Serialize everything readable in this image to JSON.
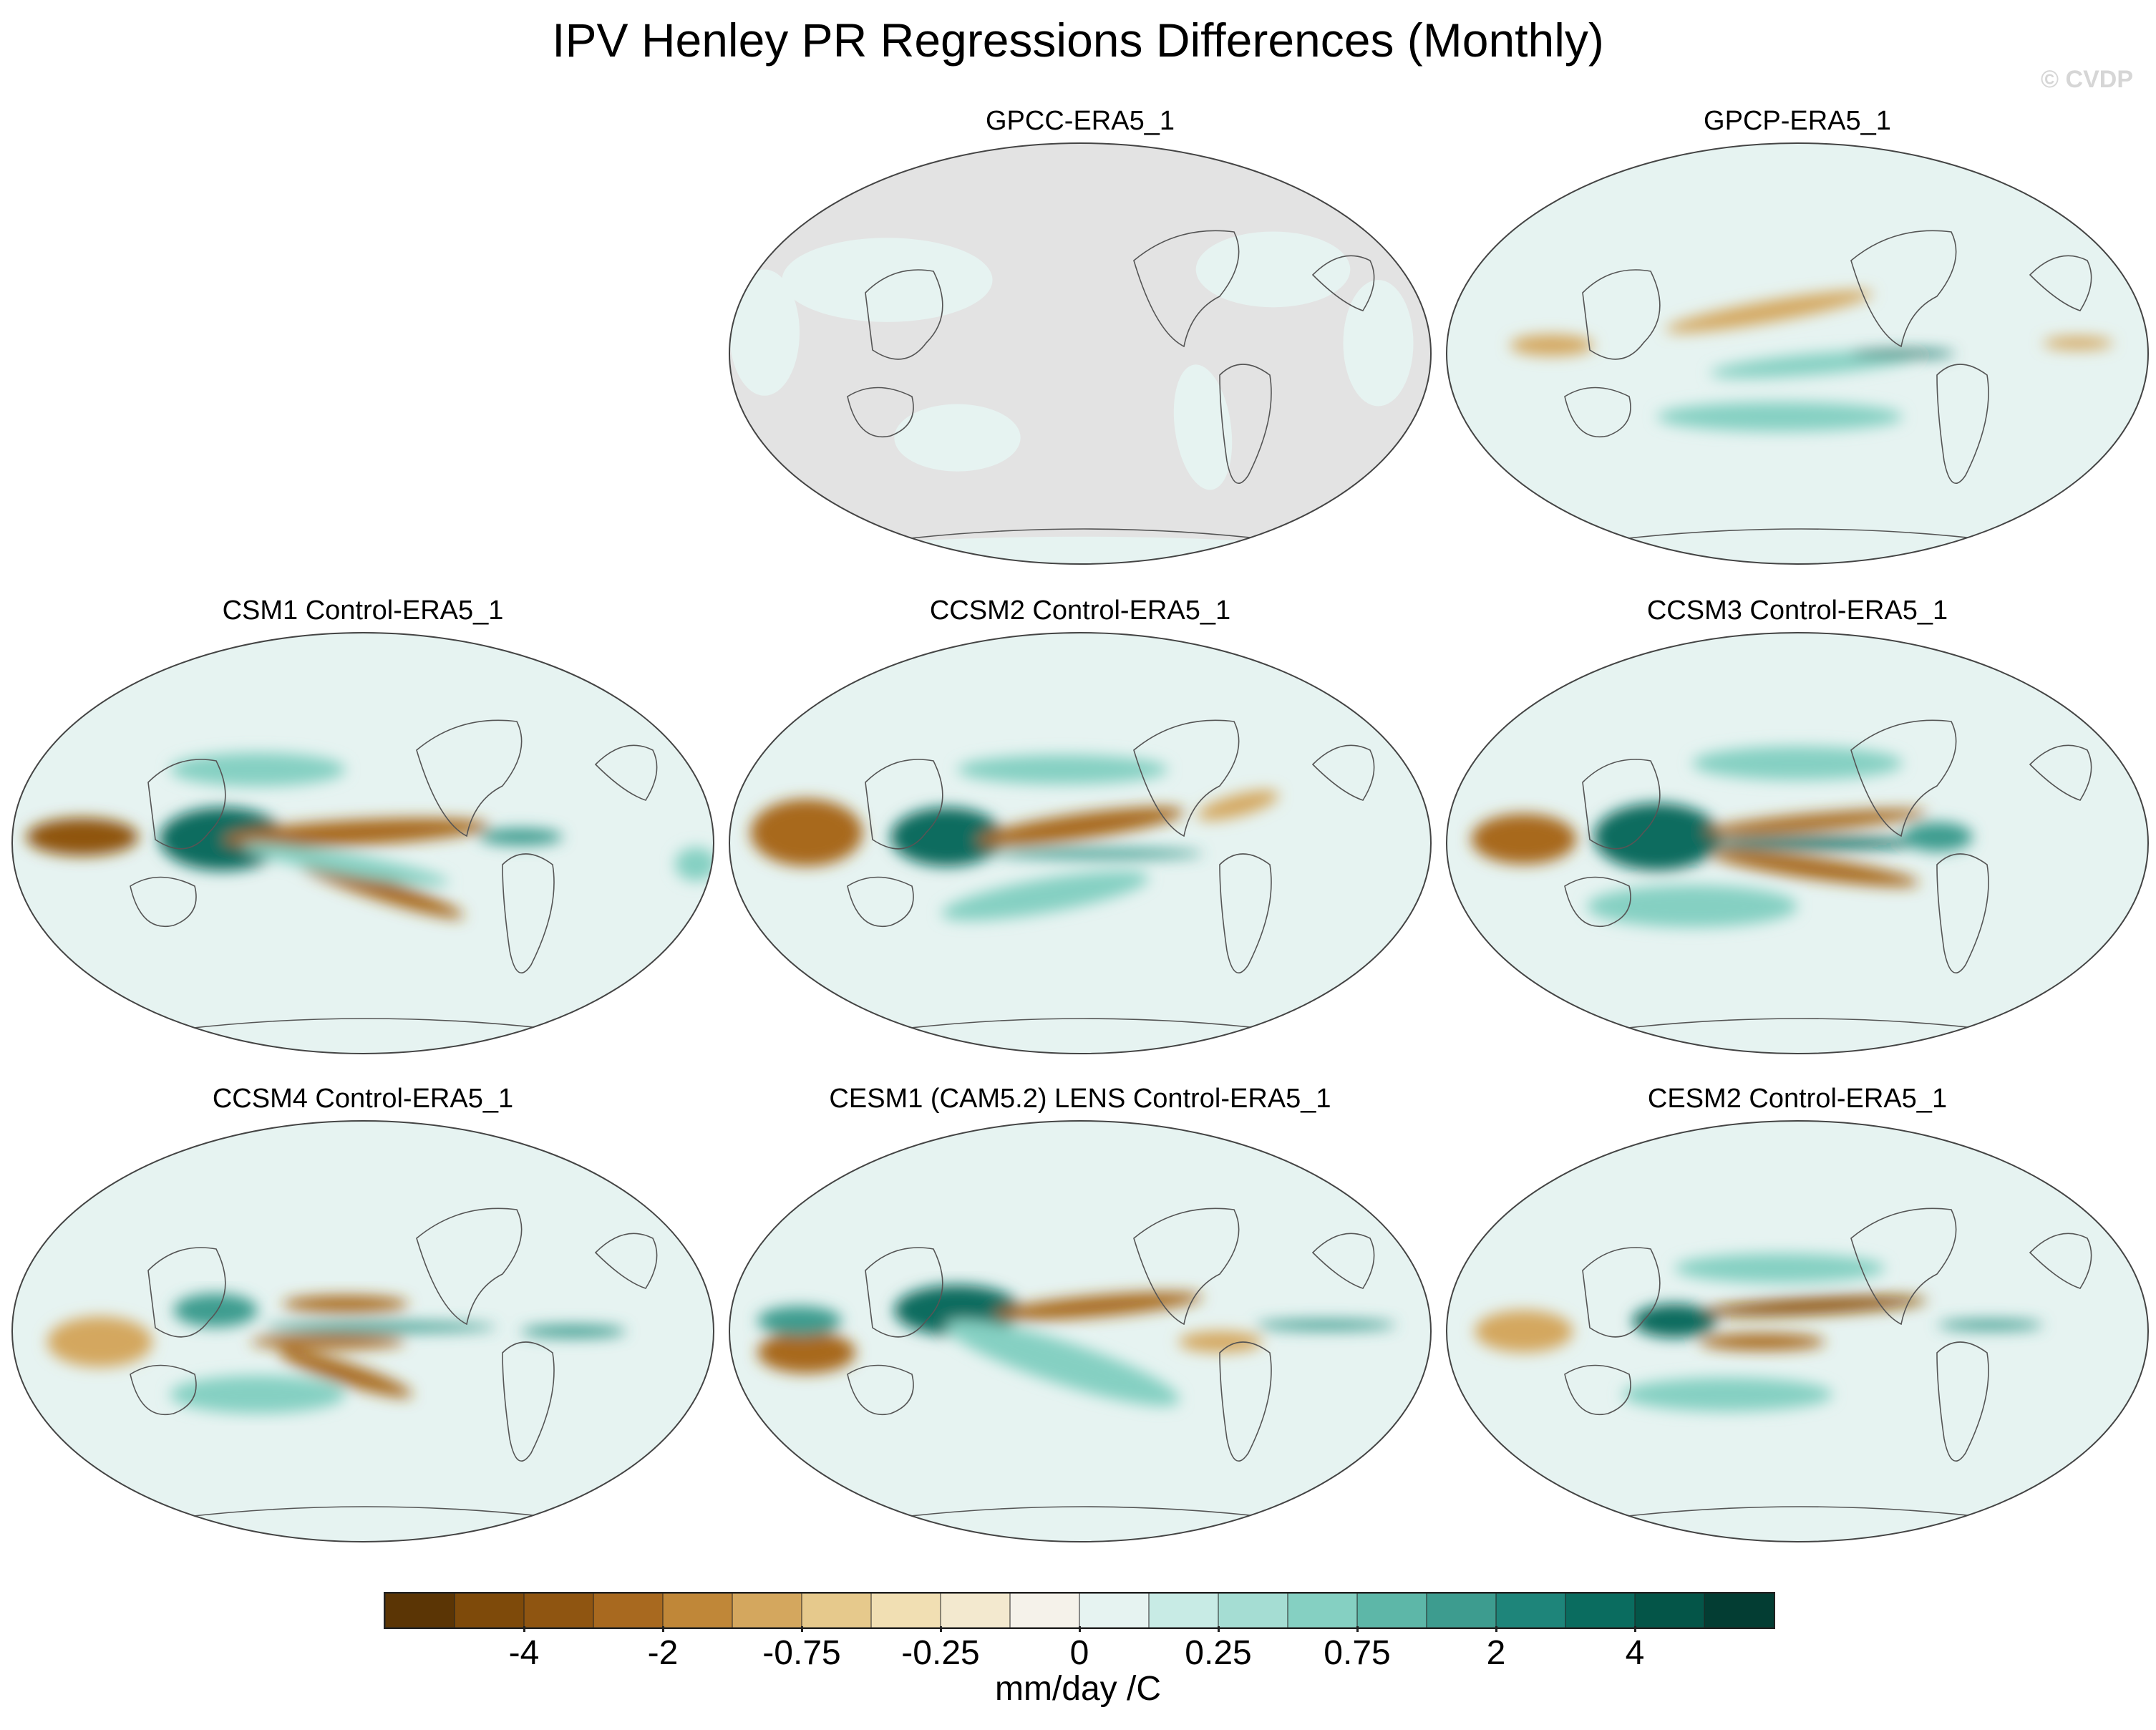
{
  "title": "IPV Henley PR Regressions Differences (Monthly)",
  "copyright": "© CVDP",
  "chart_data": {
    "type": "heatmap",
    "projection": "Robinson (Pacific-centered)",
    "variable": "PR regression differences",
    "panels": [
      {
        "id": "gpcc",
        "title": "GPCC-ERA5_1",
        "ocean_masked": true
      },
      {
        "id": "gpcp",
        "title": "GPCP-ERA5_1",
        "ocean_masked": false
      },
      {
        "id": "csm1",
        "title": "CSM1 Control-ERA5_1",
        "ocean_masked": false
      },
      {
        "id": "ccsm2",
        "title": "CCSM2 Control-ERA5_1",
        "ocean_masked": false
      },
      {
        "id": "ccsm3",
        "title": "CCSM3 Control-ERA5_1",
        "ocean_masked": false
      },
      {
        "id": "ccsm4",
        "title": "CCSM4 Control-ERA5_1",
        "ocean_masked": false
      },
      {
        "id": "cesm1",
        "title": "CESM1 (CAM5.2) LENS Control-ERA5_1",
        "ocean_masked": false
      },
      {
        "id": "cesm2",
        "title": "CESM2 Control-ERA5_1",
        "ocean_masked": false
      }
    ],
    "colorbar": {
      "units": "mm/day /C",
      "tick_labels": [
        "-4",
        "-2",
        "-0.75",
        "-0.25",
        "0",
        "0.25",
        "0.75",
        "2",
        "4"
      ],
      "colors": [
        "#5b3505",
        "#7e4a0a",
        "#8f5511",
        "#a8691f",
        "#c08738",
        "#d4a75e",
        "#e6c98c",
        "#f1dfb3",
        "#f3e9cf",
        "#f5f2ea",
        "#e6f3f1",
        "#c8ebe5",
        "#a5ddd3",
        "#85d0c2",
        "#5db7a8",
        "#3d9c8f",
        "#1e857a",
        "#0a6c5f",
        "#045548",
        "#033d33"
      ]
    }
  }
}
